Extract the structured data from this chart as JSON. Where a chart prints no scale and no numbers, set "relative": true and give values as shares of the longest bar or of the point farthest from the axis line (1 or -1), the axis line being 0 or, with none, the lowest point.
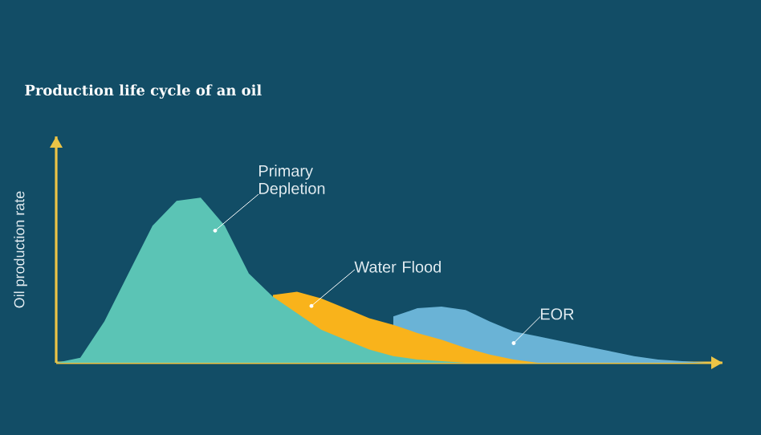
{
  "chart_data": {
    "type": "area",
    "title": "Production life cycle of an oil",
    "ylabel": "Oil production rate",
    "relative": true,
    "legend": false,
    "categories": [
      null,
      null,
      null,
      null,
      null,
      null,
      null,
      null,
      null,
      null,
      null,
      null,
      null,
      null,
      null,
      null,
      null,
      null,
      null,
      null,
      null,
      null,
      null,
      null,
      null,
      null,
      null,
      null
    ],
    "series": [
      {
        "name": "EOR",
        "color": "#6ab3d6",
        "values": [
          null,
          null,
          null,
          null,
          null,
          null,
          null,
          null,
          null,
          null,
          null,
          null,
          null,
          null,
          0.28,
          0.33,
          0.34,
          0.32,
          0.25,
          0.19,
          0.16,
          0.13,
          0.1,
          0.07,
          0.04,
          0.02,
          0.01,
          0
        ]
      },
      {
        "name": "Water Flood",
        "color": "#f9b31b",
        "values": [
          null,
          null,
          null,
          null,
          null,
          null,
          null,
          null,
          null,
          0.41,
          0.43,
          0.39,
          0.33,
          0.27,
          0.23,
          0.18,
          0.14,
          0.09,
          0.05,
          0.02,
          0,
          0,
          0,
          0,
          0,
          0,
          0,
          0
        ]
      },
      {
        "name": "Primary Depletion",
        "color": "#5bc4b5",
        "values": [
          0,
          0.03,
          0.25,
          0.54,
          0.83,
          0.98,
          1,
          0.83,
          0.54,
          0.4,
          0.3,
          0.2,
          0.14,
          0.08,
          0.04,
          0.02,
          0.01,
          0,
          0,
          0,
          0,
          0,
          0,
          0,
          0,
          0,
          0,
          0
        ]
      }
    ]
  }
}
